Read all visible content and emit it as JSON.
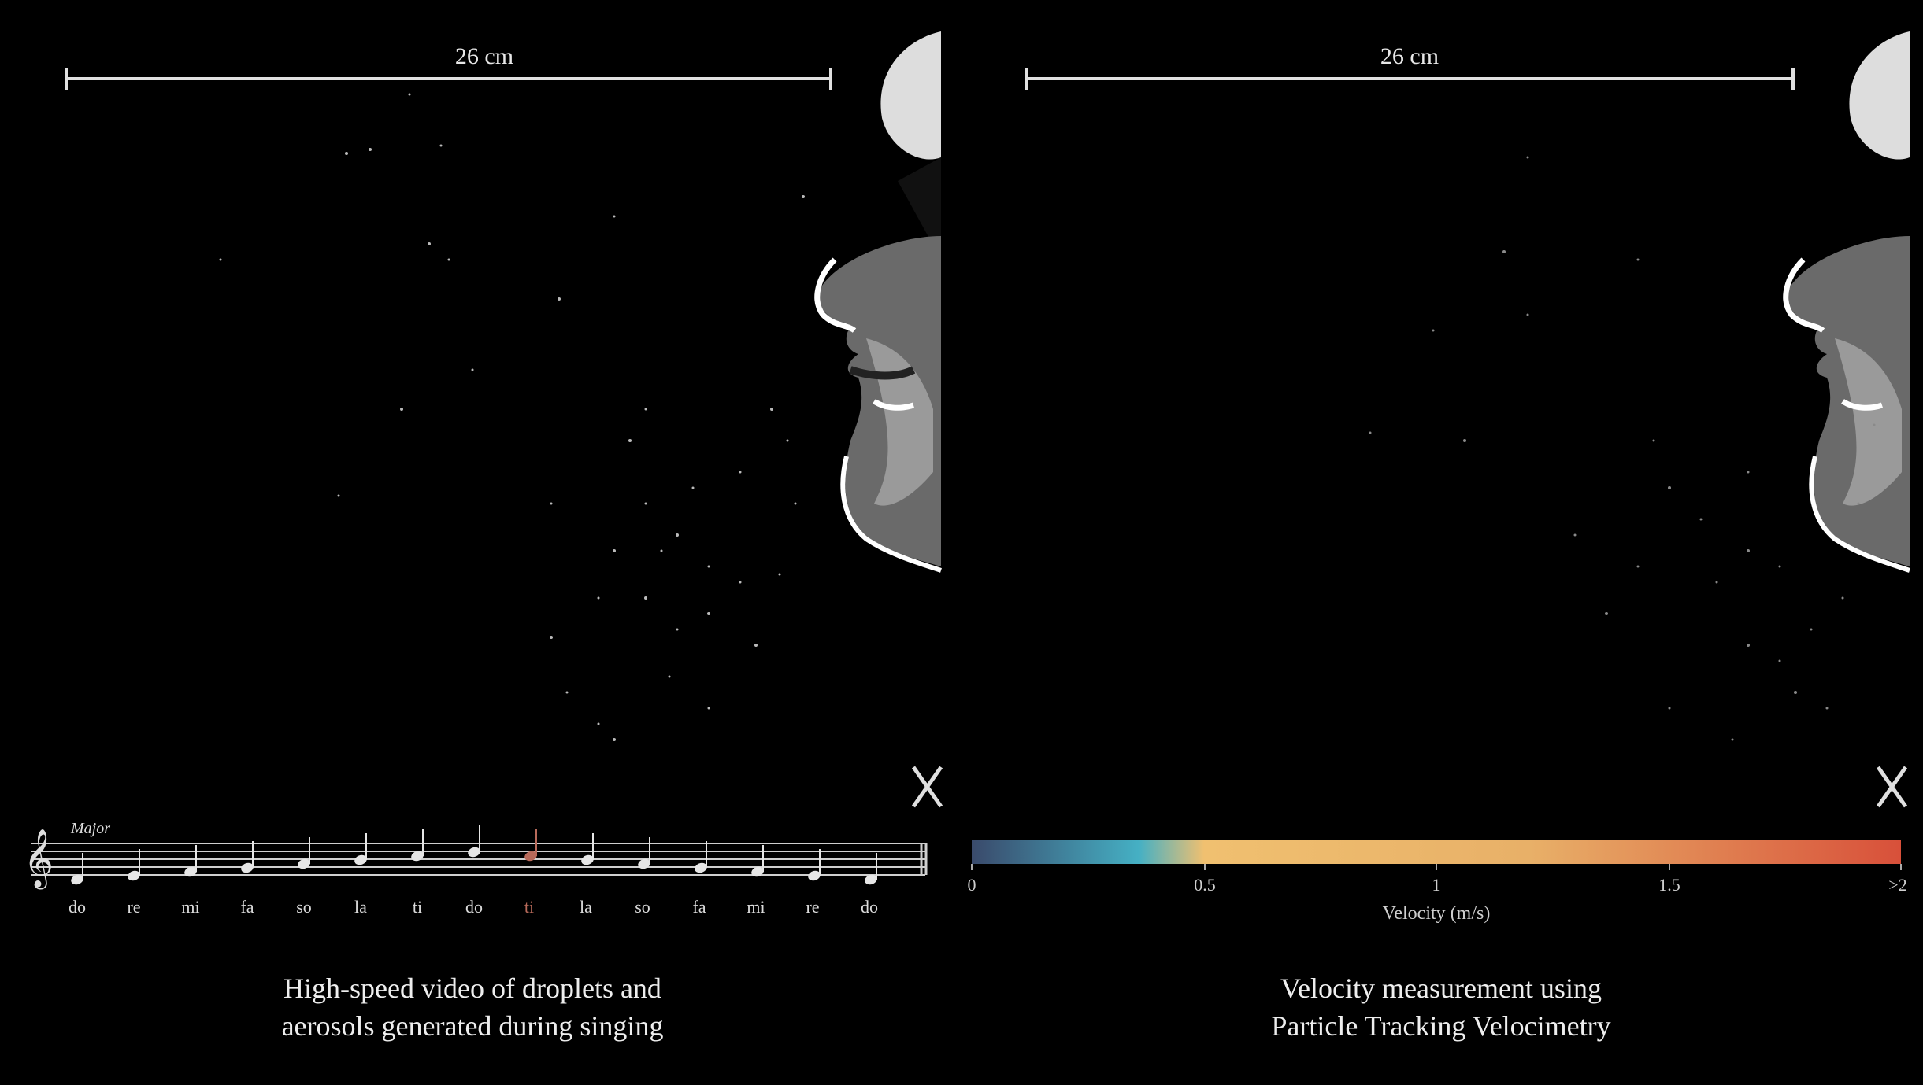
{
  "left": {
    "scale_label": "26 cm",
    "key_label": "Major",
    "solfege": [
      "do",
      "re",
      "mi",
      "fa",
      "so",
      "la",
      "ti",
      "do",
      "ti",
      "la",
      "so",
      "fa",
      "mi",
      "re",
      "do"
    ],
    "caption_line1": "High-speed video of droplets and",
    "caption_line2": "aerosols generated during singing"
  },
  "right": {
    "scale_label": "26 cm",
    "colorbar": {
      "ticks": [
        "0",
        "0.5",
        "1",
        "1.5",
        ">2"
      ],
      "title": "Velocity (m/s)",
      "colors": [
        "#3a4a6b",
        "#45b0c4",
        "#f0c070",
        "#e8a060",
        "#d8503a"
      ]
    },
    "caption_line1": "Velocity measurement using",
    "caption_line2": "Particle Tracking Velocimetry"
  }
}
